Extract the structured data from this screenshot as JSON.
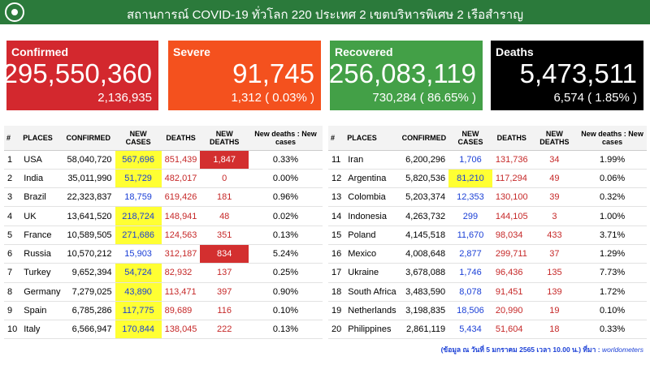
{
  "header": {
    "title": "สถานการณ์ COVID-19 ทั่วโลก 220 ประเทศ 2 เขตบริหารพิเศษ 2 เรือสำราญ"
  },
  "cards": [
    {
      "label": "Confirmed",
      "total": "295,550,360",
      "new": "2,136,935"
    },
    {
      "label": "Severe",
      "total": "91,745",
      "new": "1,312 ( 0.03% )"
    },
    {
      "label": "Recovered",
      "total": "256,083,119",
      "new": "730,284 ( 86.65% )"
    },
    {
      "label": "Deaths",
      "total": "5,473,511",
      "new": "6,574 ( 1.85% )"
    }
  ],
  "table": {
    "columns": [
      "#",
      "PLACES",
      "CONFIRMED",
      "NEW CASES",
      "DEATHS",
      "NEW DEATHS",
      "New deaths : New cases"
    ],
    "left_rows": [
      [
        "1",
        "USA",
        "58,040,720",
        "567,696",
        "851,439",
        "1,847",
        "0.33%"
      ],
      [
        "2",
        "India",
        "35,011,990",
        "51,729",
        "482,017",
        "0",
        "0.00%"
      ],
      [
        "3",
        "Brazil",
        "22,323,837",
        "18,759",
        "619,426",
        "181",
        "0.96%"
      ],
      [
        "4",
        "UK",
        "13,641,520",
        "218,724",
        "148,941",
        "48",
        "0.02%"
      ],
      [
        "5",
        "France",
        "10,589,505",
        "271,686",
        "124,563",
        "351",
        "0.13%"
      ],
      [
        "6",
        "Russia",
        "10,570,212",
        "15,903",
        "312,187",
        "834",
        "5.24%"
      ],
      [
        "7",
        "Turkey",
        "9,652,394",
        "54,724",
        "82,932",
        "137",
        "0.25%"
      ],
      [
        "8",
        "Germany",
        "7,279,025",
        "43,890",
        "113,471",
        "397",
        "0.90%"
      ],
      [
        "9",
        "Spain",
        "6,785,286",
        "117,775",
        "89,689",
        "116",
        "0.10%"
      ],
      [
        "10",
        "Italy",
        "6,566,947",
        "170,844",
        "138,045",
        "222",
        "0.13%"
      ]
    ],
    "right_rows": [
      [
        "11",
        "Iran",
        "6,200,296",
        "1,706",
        "131,736",
        "34",
        "1.99%"
      ],
      [
        "12",
        "Argentina",
        "5,820,536",
        "81,210",
        "117,294",
        "49",
        "0.06%"
      ],
      [
        "13",
        "Colombia",
        "5,203,374",
        "12,353",
        "130,100",
        "39",
        "0.32%"
      ],
      [
        "14",
        "Indonesia",
        "4,263,732",
        "299",
        "144,105",
        "3",
        "1.00%"
      ],
      [
        "15",
        "Poland",
        "4,145,518",
        "11,670",
        "98,034",
        "433",
        "3.71%"
      ],
      [
        "16",
        "Mexico",
        "4,008,648",
        "2,877",
        "299,711",
        "37",
        "1.29%"
      ],
      [
        "17",
        "Ukraine",
        "3,678,088",
        "1,746",
        "96,436",
        "135",
        "7.73%"
      ],
      [
        "18",
        "South Africa",
        "3,483,590",
        "8,078",
        "91,451",
        "139",
        "1.72%"
      ],
      [
        "19",
        "Netherlands",
        "3,198,835",
        "18,506",
        "20,990",
        "19",
        "0.10%"
      ],
      [
        "20",
        "Philippines",
        "2,861,119",
        "5,434",
        "51,604",
        "18",
        "0.33%"
      ]
    ]
  },
  "footer": {
    "note": "(ข้อมูล ณ วันที่ 5 มกราคม 2565 เวลา 10.00 น.) ที่มา :",
    "source": "worldometers"
  }
}
